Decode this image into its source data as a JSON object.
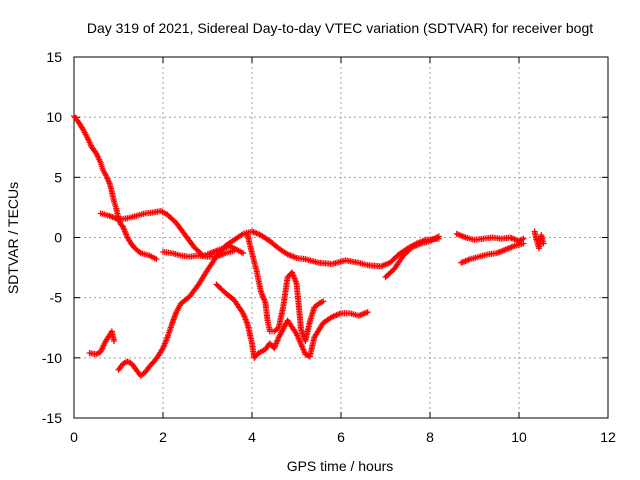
{
  "chart_data": {
    "type": "scatter",
    "title": "Day 319 of 2021, Sidereal Day-to-day VTEC variation (SDTVAR) for receiver bogt",
    "xlabel": "GPS time / hours",
    "ylabel": "SDTVAR / TECUs",
    "xlim": [
      0,
      12
    ],
    "ylim": [
      -15,
      15
    ],
    "xticks": [
      0,
      2,
      4,
      6,
      8,
      10,
      12
    ],
    "yticks": [
      -15,
      -10,
      -5,
      0,
      5,
      10,
      15
    ],
    "grid": true,
    "marker": "+",
    "color": "#ff0000",
    "series": [
      {
        "name": "track-1",
        "points": [
          [
            0.0,
            10.1
          ],
          [
            0.1,
            9.6
          ],
          [
            0.2,
            9.0
          ],
          [
            0.3,
            8.3
          ],
          [
            0.4,
            7.5
          ],
          [
            0.5,
            7.0
          ],
          [
            0.6,
            6.2
          ],
          [
            0.65,
            5.6
          ],
          [
            0.7,
            5.3
          ],
          [
            0.8,
            4.5
          ],
          [
            0.85,
            3.8
          ],
          [
            0.9,
            3.0
          ],
          [
            0.95,
            2.4
          ],
          [
            1.0,
            1.6
          ],
          [
            1.05,
            1.1
          ],
          [
            1.1,
            0.9
          ],
          [
            1.2,
            0.0
          ],
          [
            1.3,
            -0.6
          ],
          [
            1.4,
            -1.0
          ],
          [
            1.5,
            -1.3
          ],
          [
            1.7,
            -1.5
          ],
          [
            1.85,
            -1.8
          ]
        ]
      },
      {
        "name": "track-2",
        "points": [
          [
            0.6,
            2.0
          ],
          [
            0.8,
            1.8
          ],
          [
            1.0,
            1.5
          ],
          [
            1.2,
            1.6
          ],
          [
            1.4,
            1.8
          ],
          [
            1.6,
            2.0
          ],
          [
            1.8,
            2.1
          ],
          [
            1.95,
            2.2
          ],
          [
            2.1,
            1.9
          ],
          [
            2.3,
            1.2
          ],
          [
            2.5,
            0.2
          ],
          [
            2.7,
            -0.8
          ],
          [
            2.9,
            -1.5
          ],
          [
            3.0,
            -1.4
          ],
          [
            3.2,
            -1.1
          ],
          [
            3.5,
            -0.7
          ],
          [
            3.8,
            -1.3
          ]
        ]
      },
      {
        "name": "track-3",
        "points": [
          [
            0.35,
            -9.6
          ],
          [
            0.5,
            -9.7
          ],
          [
            0.6,
            -9.5
          ],
          [
            0.7,
            -8.7
          ],
          [
            0.8,
            -8.1
          ],
          [
            0.85,
            -7.8
          ],
          [
            0.9,
            -8.6
          ]
        ]
      },
      {
        "name": "track-4",
        "points": [
          [
            1.0,
            -11.0
          ],
          [
            1.1,
            -10.5
          ],
          [
            1.2,
            -10.3
          ],
          [
            1.3,
            -10.5
          ],
          [
            1.4,
            -11.0
          ],
          [
            1.5,
            -11.5
          ],
          [
            1.6,
            -11.2
          ],
          [
            1.7,
            -10.7
          ],
          [
            1.8,
            -10.3
          ],
          [
            1.9,
            -9.8
          ],
          [
            2.0,
            -9.2
          ],
          [
            2.1,
            -8.3
          ],
          [
            2.2,
            -7.2
          ],
          [
            2.3,
            -6.2
          ],
          [
            2.4,
            -5.5
          ],
          [
            2.6,
            -4.9
          ],
          [
            2.8,
            -3.9
          ],
          [
            3.0,
            -2.7
          ],
          [
            3.2,
            -1.6
          ],
          [
            3.4,
            -0.7
          ],
          [
            3.6,
            -0.2
          ],
          [
            3.8,
            0.3
          ],
          [
            4.0,
            0.5
          ],
          [
            4.2,
            0.2
          ],
          [
            4.4,
            -0.3
          ],
          [
            4.6,
            -0.9
          ],
          [
            4.8,
            -1.4
          ],
          [
            5.0,
            -1.7
          ],
          [
            5.2,
            -1.8
          ],
          [
            5.5,
            -2.1
          ],
          [
            5.8,
            -2.2
          ],
          [
            6.1,
            -1.9
          ],
          [
            6.4,
            -2.1
          ],
          [
            6.6,
            -2.3
          ],
          [
            6.9,
            -2.4
          ],
          [
            7.1,
            -2.1
          ],
          [
            7.3,
            -1.4
          ],
          [
            7.5,
            -0.9
          ],
          [
            7.7,
            -0.5
          ],
          [
            7.9,
            -0.2
          ],
          [
            8.2,
            -0.1
          ]
        ]
      },
      {
        "name": "track-5",
        "points": [
          [
            2.0,
            -1.2
          ],
          [
            2.2,
            -1.3
          ],
          [
            2.4,
            -1.5
          ],
          [
            2.6,
            -1.6
          ],
          [
            2.8,
            -1.5
          ],
          [
            3.0,
            -1.6
          ],
          [
            3.2,
            -1.6
          ],
          [
            3.4,
            -1.3
          ],
          [
            3.6,
            -1.1
          ]
        ]
      },
      {
        "name": "track-6",
        "points": [
          [
            3.2,
            -3.9
          ],
          [
            3.4,
            -4.6
          ],
          [
            3.6,
            -5.2
          ],
          [
            3.8,
            -6.3
          ],
          [
            3.9,
            -7.2
          ],
          [
            4.0,
            -8.8
          ],
          [
            4.05,
            -10.0
          ],
          [
            4.15,
            -9.6
          ],
          [
            4.3,
            -9.3
          ],
          [
            4.4,
            -8.8
          ],
          [
            4.5,
            -9.2
          ],
          [
            4.6,
            -8.3
          ],
          [
            4.8,
            -6.9
          ],
          [
            5.0,
            -8.0
          ],
          [
            5.2,
            -9.7
          ],
          [
            5.3,
            -9.9
          ],
          [
            5.4,
            -8.3
          ],
          [
            5.6,
            -7.1
          ],
          [
            5.8,
            -6.6
          ],
          [
            6.0,
            -6.3
          ],
          [
            6.2,
            -6.3
          ],
          [
            6.4,
            -6.5
          ],
          [
            6.6,
            -6.2
          ]
        ]
      },
      {
        "name": "track-7",
        "points": [
          [
            3.9,
            0.2
          ],
          [
            4.0,
            -1.3
          ],
          [
            4.1,
            -2.7
          ],
          [
            4.2,
            -4.5
          ],
          [
            4.3,
            -5.4
          ],
          [
            4.35,
            -6.9
          ],
          [
            4.4,
            -7.8
          ],
          [
            4.5,
            -7.8
          ],
          [
            4.6,
            -7.5
          ],
          [
            4.7,
            -5.8
          ],
          [
            4.8,
            -3.3
          ],
          [
            4.9,
            -2.9
          ],
          [
            5.0,
            -3.8
          ],
          [
            5.05,
            -5.6
          ],
          [
            5.1,
            -7.6
          ],
          [
            5.2,
            -8.6
          ],
          [
            5.3,
            -7.0
          ],
          [
            5.4,
            -5.8
          ],
          [
            5.5,
            -5.5
          ],
          [
            5.6,
            -5.3
          ]
        ]
      },
      {
        "name": "track-8",
        "points": [
          [
            7.0,
            -3.3
          ],
          [
            7.2,
            -2.6
          ],
          [
            7.4,
            -1.5
          ],
          [
            7.6,
            -0.8
          ],
          [
            7.8,
            -0.5
          ],
          [
            8.0,
            -0.3
          ],
          [
            8.2,
            0.1
          ]
        ]
      },
      {
        "name": "track-9",
        "points": [
          [
            8.6,
            0.3
          ],
          [
            8.8,
            0.0
          ],
          [
            9.0,
            -0.2
          ],
          [
            9.2,
            -0.1
          ],
          [
            9.4,
            0.0
          ],
          [
            9.6,
            -0.1
          ],
          [
            9.8,
            0.0
          ],
          [
            10.0,
            -0.3
          ],
          [
            10.1,
            -0.1
          ]
        ]
      },
      {
        "name": "track-10",
        "points": [
          [
            8.7,
            -2.1
          ],
          [
            8.9,
            -1.8
          ],
          [
            9.1,
            -1.6
          ],
          [
            9.3,
            -1.4
          ],
          [
            9.5,
            -1.3
          ],
          [
            9.7,
            -1.0
          ],
          [
            9.9,
            -0.7
          ],
          [
            10.1,
            -0.5
          ]
        ]
      },
      {
        "name": "track-11",
        "points": [
          [
            10.35,
            0.5
          ],
          [
            10.4,
            -0.3
          ],
          [
            10.45,
            -0.9
          ],
          [
            10.5,
            0.2
          ],
          [
            10.55,
            -0.5
          ]
        ]
      }
    ]
  }
}
